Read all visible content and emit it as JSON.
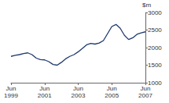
{
  "chart_data": {
    "type": "line",
    "y_label": "$m",
    "categories": [
      "Jun\n1999",
      null,
      null,
      null,
      null,
      null,
      null,
      null,
      "Jun\n2001",
      null,
      null,
      null,
      null,
      null,
      null,
      null,
      "Jun\n2003",
      null,
      null,
      null,
      null,
      null,
      null,
      null,
      "Jun\n2005",
      null,
      null,
      null,
      null,
      null,
      null,
      null,
      "Jun\n2007"
    ],
    "values": [
      1750,
      1780,
      1800,
      1830,
      1850,
      1800,
      1700,
      1660,
      1650,
      1600,
      1520,
      1500,
      1580,
      1680,
      1750,
      1800,
      1880,
      1980,
      2080,
      2120,
      2100,
      2130,
      2200,
      2400,
      2600,
      2660,
      2550,
      2350,
      2230,
      2280,
      2380,
      2420,
      2450
    ],
    "color": "#1f3a6e",
    "ylim": [
      1000,
      3000
    ],
    "yticks": [
      1000,
      1500,
      2000,
      2500,
      3000
    ],
    "grid": false
  }
}
